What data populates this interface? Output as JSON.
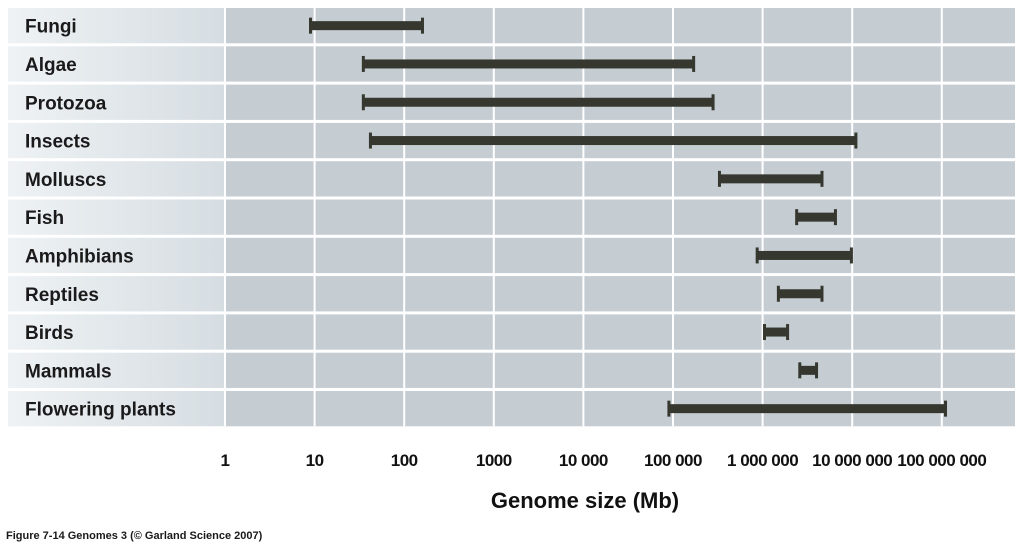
{
  "chart_data": {
    "type": "bar",
    "xlabel": "Genome size (Mb)",
    "xscale": "log",
    "xlim": [
      1,
      200000000
    ],
    "ticks": [
      {
        "value": 1,
        "label": "1"
      },
      {
        "value": 10,
        "label": "10"
      },
      {
        "value": 100,
        "label": "100"
      },
      {
        "value": 1000,
        "label": "1000"
      },
      {
        "value": 10000,
        "label": "10 000"
      },
      {
        "value": 100000,
        "label": "100 000"
      },
      {
        "value": 1000000,
        "label": "1 000 000"
      },
      {
        "value": 10000000,
        "label": "10 000 000"
      },
      {
        "value": 100000000,
        "label": "100 000 000"
      }
    ],
    "categories": [
      "Fungi",
      "Algae",
      "Protozoa",
      "Insects",
      "Molluscs",
      "Fish",
      "Amphibians",
      "Reptiles",
      "Birds",
      "Mammals",
      "Flowering plants"
    ],
    "ranges": [
      [
        9,
        160
      ],
      [
        35,
        170000
      ],
      [
        35,
        280000
      ],
      [
        42,
        11000000
      ],
      [
        330000,
        4600000
      ],
      [
        2400000,
        6500000
      ],
      [
        870000,
        9800000
      ],
      [
        1500000,
        4600000
      ],
      [
        1050000,
        1900000
      ],
      [
        2600000,
        4000000
      ],
      [
        90000,
        110000000
      ]
    ],
    "colors": {
      "plot_background": "#c5ccd2",
      "label_background": "#e5eaed",
      "bar": "#363830",
      "grid": "#ffffff"
    }
  },
  "caption": "Figure 7-14  Genomes 3 (© Garland Science 2007)"
}
